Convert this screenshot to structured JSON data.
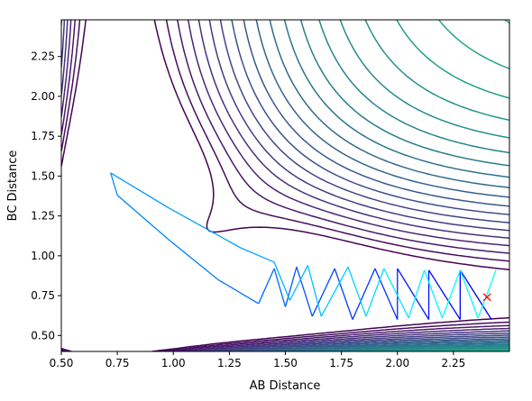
{
  "chart_data": {
    "type": "contour",
    "title": "",
    "xlabel": "AB Distance",
    "ylabel": "BC Distance",
    "xlim": [
      0.5,
      2.5
    ],
    "ylim": [
      0.4,
      2.48
    ],
    "x_ticks": [
      0.5,
      0.75,
      1.0,
      1.25,
      1.5,
      1.75,
      2.0,
      2.25
    ],
    "x_tick_labels": [
      "0.50",
      "0.75",
      "1.00",
      "1.25",
      "1.50",
      "1.75",
      "2.00",
      "2.25"
    ],
    "y_ticks": [
      0.5,
      0.75,
      1.0,
      1.25,
      1.5,
      1.75,
      2.0,
      2.25
    ],
    "y_tick_labels": [
      "0.50",
      "0.75",
      "1.00",
      "1.25",
      "1.50",
      "1.75",
      "2.00",
      "2.25"
    ],
    "grid": false,
    "legend": "none",
    "colormap_contours": "viridis",
    "trajectory_colormap": "jet",
    "marker": {
      "symbol": "x",
      "color": "#ff0000",
      "x": 2.4,
      "y": 0.74
    },
    "trajectory": [
      [
        2.42,
        0.6
      ],
      [
        2.28,
        0.91
      ],
      [
        2.28,
        0.6
      ],
      [
        2.14,
        0.91
      ],
      [
        2.14,
        0.6
      ],
      [
        2.0,
        0.92
      ],
      [
        2.0,
        0.6
      ],
      [
        1.9,
        0.92
      ],
      [
        1.8,
        0.6
      ],
      [
        1.72,
        0.92
      ],
      [
        1.62,
        0.62
      ],
      [
        1.55,
        0.93
      ],
      [
        1.5,
        0.68
      ],
      [
        1.45,
        0.92
      ],
      [
        1.38,
        0.7
      ],
      [
        1.2,
        0.85
      ],
      [
        0.98,
        1.1
      ],
      [
        0.75,
        1.38
      ],
      [
        0.72,
        1.52
      ],
      [
        0.98,
        1.3
      ],
      [
        1.3,
        1.05
      ],
      [
        1.45,
        0.96
      ],
      [
        1.52,
        0.72
      ],
      [
        1.6,
        0.94
      ],
      [
        1.66,
        0.62
      ],
      [
        1.78,
        0.93
      ],
      [
        1.86,
        0.62
      ],
      [
        1.94,
        0.92
      ],
      [
        2.05,
        0.61
      ],
      [
        2.12,
        0.91
      ],
      [
        2.2,
        0.61
      ],
      [
        2.28,
        0.91
      ],
      [
        2.36,
        0.61
      ],
      [
        2.44,
        0.91
      ]
    ]
  }
}
